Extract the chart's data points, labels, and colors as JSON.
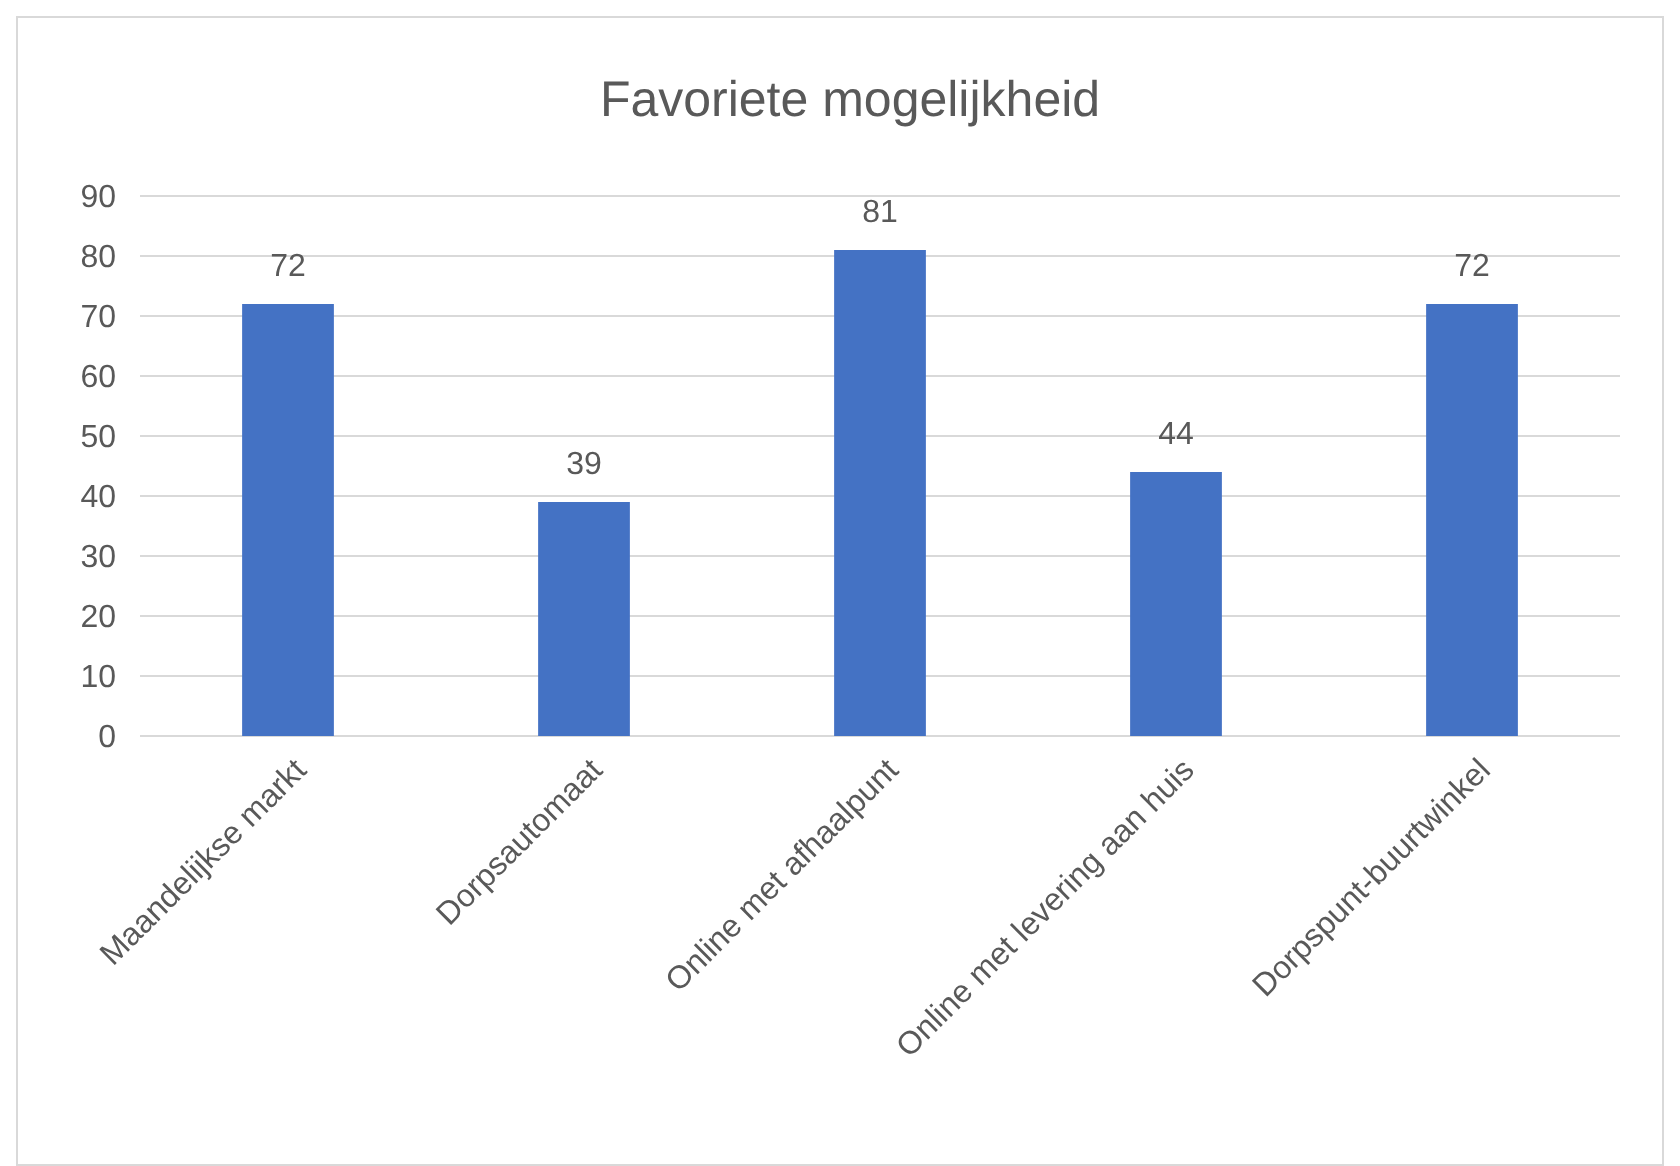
{
  "chart_data": {
    "type": "bar",
    "title": "Favoriete mogelijkheid",
    "categories": [
      "Maandelijkse markt",
      "Dorpsautomaat",
      "Online met afhaalpunt",
      "Online met levering aan huis",
      "Dorpspunt-buurtwinkel"
    ],
    "values": [
      72,
      39,
      81,
      44,
      72
    ],
    "color": "#4472c4",
    "ylim": [
      0,
      90
    ],
    "yticks": [
      0,
      10,
      20,
      30,
      40,
      50,
      60,
      70,
      80,
      90
    ],
    "grid": "y",
    "data_labels": true
  }
}
